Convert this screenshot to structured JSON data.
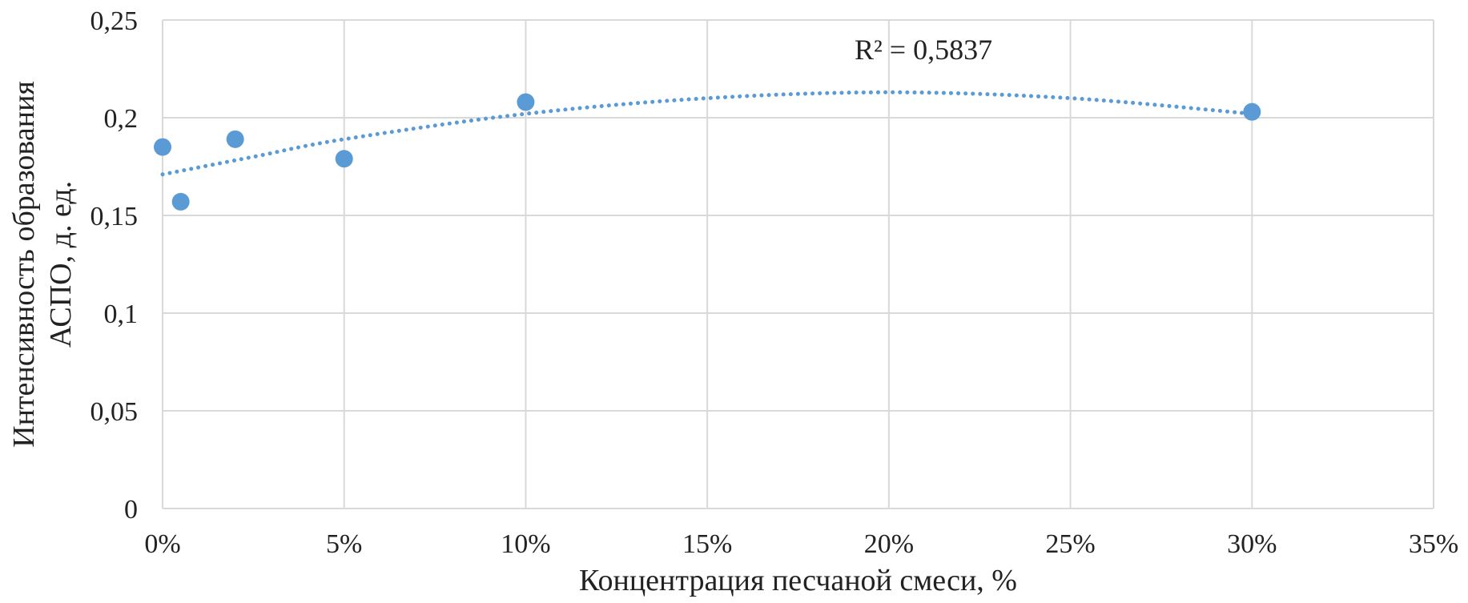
{
  "chart_data": {
    "type": "scatter",
    "xlabel": "Концентрация песчаной смеси, %",
    "ylabel_lines": [
      "Интенсивность образования",
      "АСПО, д. ед."
    ],
    "xlim": [
      0,
      35
    ],
    "ylim": [
      0,
      0.25
    ],
    "x_ticks": [
      {
        "value": 0,
        "label": "0%"
      },
      {
        "value": 5,
        "label": "5%"
      },
      {
        "value": 10,
        "label": "10%"
      },
      {
        "value": 15,
        "label": "15%"
      },
      {
        "value": 20,
        "label": "20%"
      },
      {
        "value": 25,
        "label": "25%"
      },
      {
        "value": 30,
        "label": "30%"
      },
      {
        "value": 35,
        "label": "35%"
      }
    ],
    "y_ticks": [
      {
        "value": 0,
        "label": "0"
      },
      {
        "value": 0.05,
        "label": "0,05"
      },
      {
        "value": 0.1,
        "label": "0,1"
      },
      {
        "value": 0.15,
        "label": "0,15"
      },
      {
        "value": 0.2,
        "label": "0,2"
      },
      {
        "value": 0.25,
        "label": "0,25"
      }
    ],
    "grid": true,
    "series": [
      {
        "points": [
          {
            "x": 0,
            "y": 0.185
          },
          {
            "x": 0.5,
            "y": 0.157
          },
          {
            "x": 2,
            "y": 0.189
          },
          {
            "x": 5,
            "y": 0.179
          },
          {
            "x": 10,
            "y": 0.208
          },
          {
            "x": 30,
            "y": 0.203
          }
        ],
        "color": "#5b9bd5"
      }
    ],
    "trendline": {
      "type": "polynomial",
      "style": "dotted",
      "color": "#5b9bd5",
      "curve": [
        {
          "x": 0,
          "y": 0.171
        },
        {
          "x": 2.5,
          "y": 0.18
        },
        {
          "x": 5,
          "y": 0.189
        },
        {
          "x": 10,
          "y": 0.202
        },
        {
          "x": 15,
          "y": 0.21
        },
        {
          "x": 20,
          "y": 0.213
        },
        {
          "x": 25,
          "y": 0.21
        },
        {
          "x": 30,
          "y": 0.202
        }
      ]
    },
    "annotation": {
      "text": "R² = 0,5837"
    }
  }
}
